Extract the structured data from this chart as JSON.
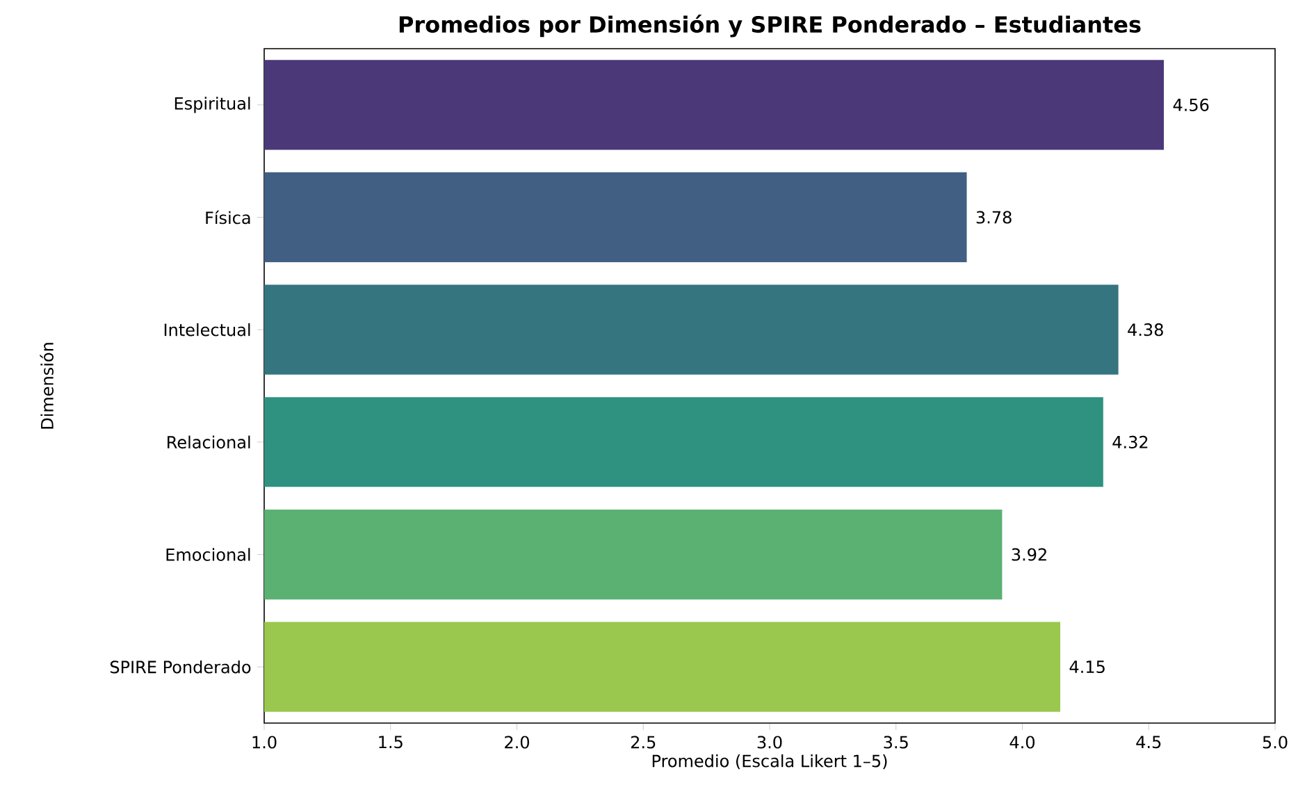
{
  "chart_data": {
    "type": "bar",
    "orientation": "horizontal",
    "title": "Promedios por Dimensión y SPIRE Ponderado – Estudiantes",
    "xlabel": "Promedio (Escala Likert 1–5)",
    "ylabel": "Dimensión",
    "categories": [
      "Espiritual",
      "Física",
      "Intelectual",
      "Relacional",
      "Emocional",
      "SPIRE Ponderado"
    ],
    "values": [
      4.56,
      3.78,
      4.38,
      4.32,
      3.92,
      4.15
    ],
    "colors": [
      "#4b3878",
      "#415f82",
      "#357580",
      "#2f9280",
      "#5ab172",
      "#9ac74d"
    ],
    "xlim": [
      1.0,
      5.0
    ],
    "xticks": [
      {
        "value": 1,
        "label": "1.0"
      },
      {
        "value": 1.5,
        "label": "1.5"
      },
      {
        "value": 2,
        "label": "2.0"
      },
      {
        "value": 2.5,
        "label": "2.5"
      },
      {
        "value": 3,
        "label": "3.0"
      },
      {
        "value": 3.5,
        "label": "3.5"
      },
      {
        "value": 4,
        "label": "4.0"
      },
      {
        "value": 4.5,
        "label": "4.5"
      },
      {
        "value": 5,
        "label": "5.0"
      }
    ],
    "data_labels": true,
    "grid": false
  }
}
